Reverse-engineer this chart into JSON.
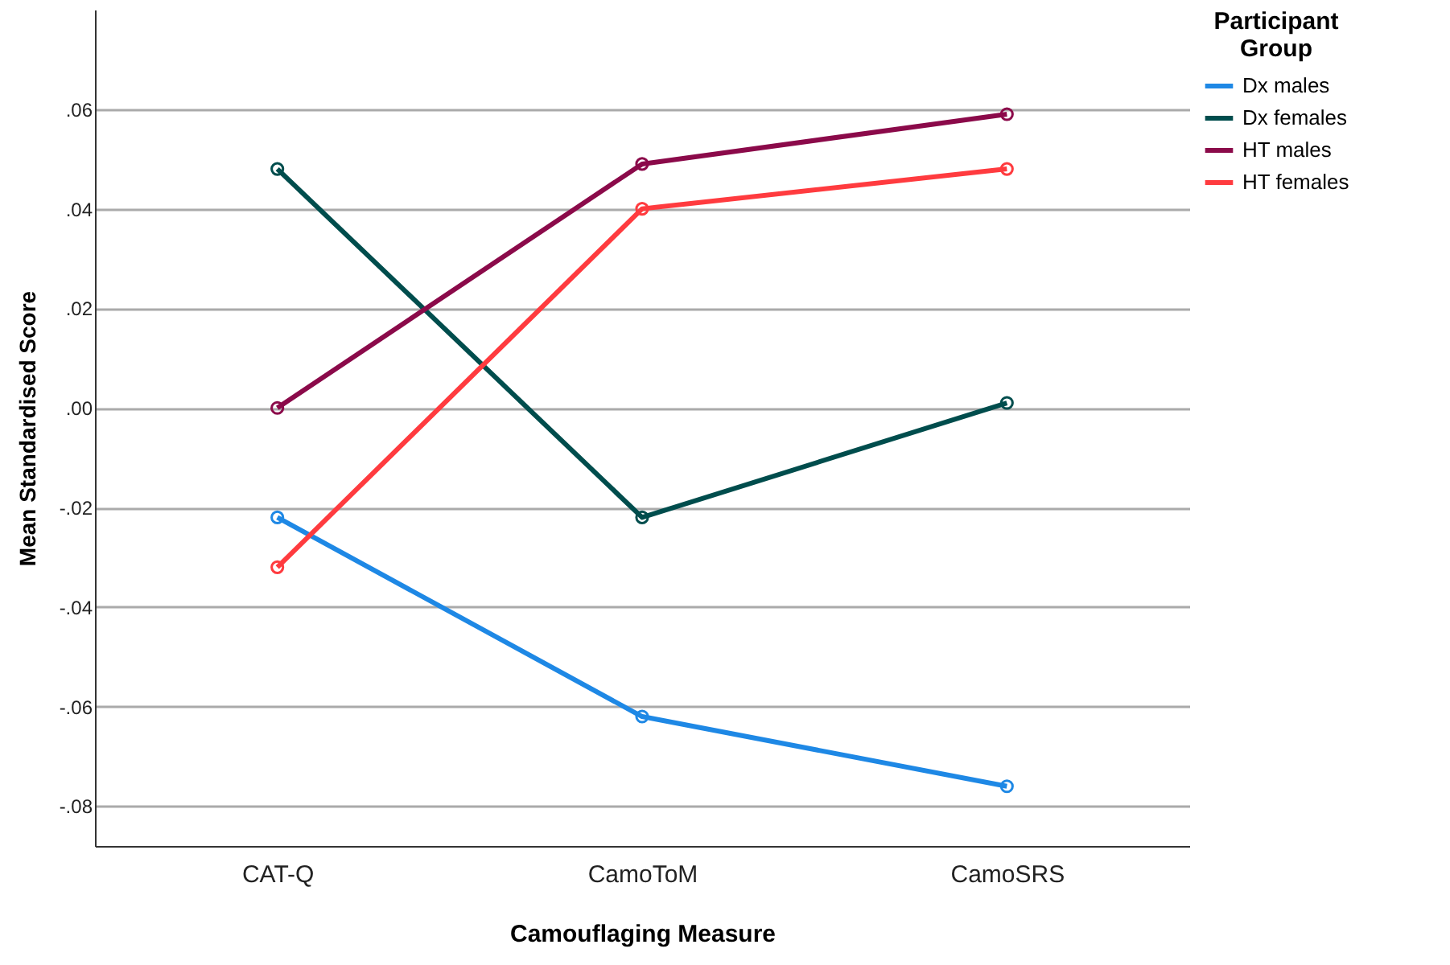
{
  "chart_data": {
    "type": "line",
    "xlabel": "Camouflaging Measure",
    "ylabel": "Mean Standardised Score",
    "legend_title": "Participant Group",
    "categories": [
      "CAT-Q",
      "CamoToM",
      "CamoSRS"
    ],
    "series": [
      {
        "name": "Dx males",
        "color": "#1e88e5",
        "values": [
          -0.022,
          -0.062,
          -0.076
        ]
      },
      {
        "name": "Dx females",
        "color": "#004d4d",
        "values": [
          0.048,
          -0.022,
          0.001
        ]
      },
      {
        "name": "HT males",
        "color": "#8b0a4a",
        "values": [
          0.0,
          0.049,
          0.059
        ]
      },
      {
        "name": "HT females",
        "color": "#ff3b3f",
        "values": [
          -0.032,
          0.04,
          0.048
        ]
      }
    ],
    "ylim": [
      -0.088,
      0.08
    ],
    "yticks": [
      {
        "value": -0.08,
        "label": "-.08"
      },
      {
        "value": -0.06,
        "label": "-.06"
      },
      {
        "value": -0.04,
        "label": "-.04"
      },
      {
        "value": -0.02,
        "label": "-.02"
      },
      {
        "value": 0,
        "label": ".00"
      },
      {
        "value": 0.02,
        "label": ".02"
      },
      {
        "value": 0.04,
        "label": ".04"
      },
      {
        "value": 0.06,
        "label": ".06"
      }
    ],
    "grid": "y",
    "legend": "top right",
    "marker": "circle",
    "line_style": "solid"
  }
}
